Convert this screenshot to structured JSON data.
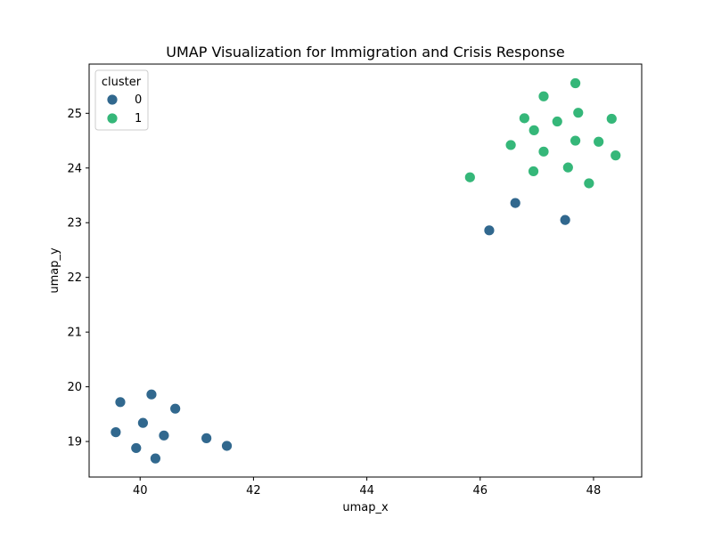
{
  "chart_data": {
    "type": "scatter",
    "title": "UMAP Visualization for Immigration and Crisis Response",
    "xlabel": "umap_x",
    "ylabel": "umap_y",
    "xlim": [
      39.1,
      48.85
    ],
    "ylim": [
      18.35,
      25.9
    ],
    "xticks": [
      40,
      42,
      44,
      46,
      48
    ],
    "yticks": [
      19,
      20,
      21,
      22,
      23,
      24,
      25
    ],
    "grid": false,
    "legend": {
      "title": "cluster",
      "placement": "top-left",
      "entries": [
        {
          "label": "0",
          "color": "#31688e"
        },
        {
          "label": "1",
          "color": "#35b779"
        }
      ]
    },
    "series": [
      {
        "name": "0",
        "color": "#31688e",
        "points": [
          {
            "x": 39.65,
            "y": 19.72
          },
          {
            "x": 40.2,
            "y": 19.86
          },
          {
            "x": 40.62,
            "y": 19.6
          },
          {
            "x": 40.05,
            "y": 19.34
          },
          {
            "x": 39.57,
            "y": 19.17
          },
          {
            "x": 40.42,
            "y": 19.11
          },
          {
            "x": 41.17,
            "y": 19.06
          },
          {
            "x": 41.53,
            "y": 18.92
          },
          {
            "x": 39.93,
            "y": 18.88
          },
          {
            "x": 40.27,
            "y": 18.69
          },
          {
            "x": 46.62,
            "y": 23.36
          },
          {
            "x": 46.16,
            "y": 22.86
          },
          {
            "x": 47.5,
            "y": 23.05
          }
        ]
      },
      {
        "name": "1",
        "color": "#35b779",
        "points": [
          {
            "x": 47.68,
            "y": 25.55
          },
          {
            "x": 47.12,
            "y": 25.31
          },
          {
            "x": 47.73,
            "y": 25.01
          },
          {
            "x": 46.78,
            "y": 24.91
          },
          {
            "x": 47.36,
            "y": 24.85
          },
          {
            "x": 48.32,
            "y": 24.9
          },
          {
            "x": 46.95,
            "y": 24.69
          },
          {
            "x": 46.54,
            "y": 24.42
          },
          {
            "x": 47.68,
            "y": 24.5
          },
          {
            "x": 48.09,
            "y": 24.48
          },
          {
            "x": 47.12,
            "y": 24.3
          },
          {
            "x": 48.39,
            "y": 24.23
          },
          {
            "x": 47.55,
            "y": 24.01
          },
          {
            "x": 46.94,
            "y": 23.94
          },
          {
            "x": 45.82,
            "y": 23.83
          },
          {
            "x": 47.92,
            "y": 23.72
          }
        ]
      }
    ]
  }
}
